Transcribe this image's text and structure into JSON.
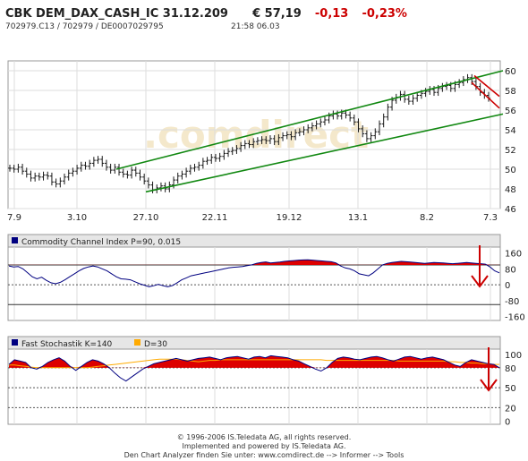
{
  "header": {
    "symbol": "CBK DEM_DAX_CASH_IC 31.12.209",
    "price": "€ 57,19",
    "change": "-0,13",
    "change_pct": "-0,23%",
    "ids": "702979.C13  /  702979  /  DE0007029795",
    "time": "21:58  06.03"
  },
  "watermark": ".comdirect",
  "colors": {
    "channel": "#118811",
    "down": "#cc0000",
    "indicator": "#000080",
    "fill": "#dd0000",
    "signal": "#ffaa00"
  },
  "footer": {
    "line1": "© 1996-2006 IS.Teledata AG, all rights reserved.",
    "line2": "Implemented and powered by IS.Teledata AG.",
    "line3": "Den Chart Analyzer finden Sie unter: www.comdirect.de --> Informer --> Tools"
  },
  "chart_data": [
    {
      "type": "ohlc",
      "x_ticks": [
        "7.9",
        "3.10",
        "27.10",
        "22.11",
        "19.12",
        "13.1",
        "8.2",
        "7.3"
      ],
      "y_ticks": [
        46,
        48,
        50,
        52,
        54,
        56,
        58,
        60
      ],
      "ylim": [
        46,
        61
      ],
      "close": [
        50.1,
        50.0,
        50.2,
        49.8,
        49.5,
        49.1,
        49.3,
        49.2,
        49.4,
        49.3,
        48.7,
        48.5,
        48.8,
        49.2,
        49.6,
        49.8,
        50.1,
        50.4,
        50.3,
        50.6,
        50.9,
        51.0,
        50.6,
        50.2,
        49.9,
        50.2,
        49.7,
        49.5,
        49.4,
        49.9,
        49.6,
        49.2,
        48.8,
        48.4,
        47.9,
        48.1,
        48.3,
        48.0,
        48.4,
        48.9,
        49.3,
        49.5,
        49.8,
        50.1,
        50.2,
        50.4,
        50.8,
        50.9,
        51.2,
        51.1,
        51.3,
        51.6,
        51.8,
        51.9,
        52.1,
        52.4,
        52.6,
        52.5,
        52.8,
        52.9,
        53.0,
        52.9,
        53.1,
        52.8,
        53.2,
        53.4,
        53.5,
        53.3,
        53.7,
        53.8,
        54.0,
        54.2,
        54.4,
        54.6,
        54.8,
        55.0,
        55.4,
        55.6,
        55.4,
        55.7,
        55.5,
        55.2,
        54.8,
        54.1,
        53.6,
        53.1,
        53.4,
        53.8,
        54.6,
        55.3,
        56.3,
        57.0,
        57.3,
        57.6,
        57.1,
        56.9,
        57.2,
        57.5,
        57.7,
        57.9,
        58.1,
        57.8,
        58.2,
        58.4,
        58.5,
        58.2,
        58.6,
        58.8,
        59.1,
        59.3,
        58.9,
        58.4,
        57.8,
        57.5,
        57.2
      ],
      "trend_lines": [
        {
          "name": "upper",
          "from": [
            "27.10",
            50.0
          ],
          "to": [
            "7.3",
            60.0
          ]
        },
        {
          "name": "lower",
          "from": [
            "27.10",
            47.7
          ],
          "to": [
            "7.3",
            55.6
          ]
        },
        {
          "name": "down-channel-top",
          "from": [
            "7.3",
            59.5
          ],
          "to": [
            "7.3",
            57.4
          ]
        },
        {
          "name": "down-channel-bottom",
          "from": [
            "7.3",
            58.8
          ],
          "to": [
            "7.3",
            56.2
          ]
        }
      ]
    },
    {
      "type": "line",
      "legend": "Commodity Channel Index P=90, 0.015",
      "y_ticks": [
        -160,
        -80,
        0,
        80,
        160
      ],
      "ylim": [
        -180,
        190
      ],
      "reference_lines": [
        100,
        -100
      ],
      "values": [
        95,
        90,
        92,
        80,
        60,
        40,
        30,
        38,
        22,
        10,
        5,
        12,
        25,
        40,
        55,
        70,
        82,
        90,
        95,
        90,
        80,
        70,
        55,
        40,
        30,
        28,
        25,
        15,
        5,
        -2,
        -10,
        -5,
        2,
        -5,
        -10,
        -4,
        10,
        25,
        35,
        45,
        50,
        55,
        60,
        65,
        70,
        75,
        80,
        85,
        88,
        90,
        92,
        96,
        100,
        108,
        112,
        115,
        110,
        112,
        114,
        118,
        120,
        122,
        124,
        125,
        126,
        124,
        122,
        120,
        118,
        116,
        110,
        95,
        85,
        80,
        70,
        55,
        50,
        45,
        60,
        80,
        100,
        108,
        112,
        115,
        118,
        116,
        114,
        112,
        110,
        108,
        110,
        112,
        111,
        110,
        108,
        106,
        108,
        110,
        112,
        110,
        108,
        106,
        104,
        90,
        70,
        60
      ]
    },
    {
      "type": "line",
      "legend": "Fast Stochastik K=140",
      "legend2": "D=30",
      "y_ticks": [
        0,
        20,
        50,
        80,
        100
      ],
      "ylim": [
        -5,
        108
      ],
      "reference_lines": [
        80,
        50,
        20
      ],
      "k": [
        85,
        92,
        90,
        88,
        80,
        78,
        82,
        88,
        92,
        95,
        90,
        82,
        76,
        82,
        88,
        92,
        90,
        86,
        80,
        72,
        65,
        60,
        66,
        72,
        78,
        82,
        86,
        88,
        90,
        92,
        94,
        92,
        90,
        92,
        94,
        95,
        96,
        94,
        92,
        95,
        96,
        97,
        95,
        93,
        96,
        97,
        95,
        98,
        97,
        96,
        95,
        92,
        90,
        86,
        82,
        78,
        75,
        80,
        88,
        94,
        96,
        95,
        93,
        92,
        94,
        96,
        97,
        95,
        92,
        90,
        93,
        96,
        97,
        95,
        93,
        95,
        96,
        94,
        92,
        88,
        84,
        82,
        88,
        92,
        90,
        88,
        86,
        85,
        80
      ],
      "d": [
        84,
        84,
        83,
        82,
        81,
        80,
        80,
        80,
        80,
        80,
        80,
        80,
        80,
        80,
        80,
        81,
        82,
        83,
        84,
        85,
        86,
        87,
        88,
        89,
        90,
        91,
        92,
        93,
        93,
        93,
        93,
        92,
        91,
        90,
        89,
        90,
        91,
        91,
        92,
        92,
        92,
        92,
        92,
        92,
        92,
        92,
        92,
        92,
        92,
        92,
        92,
        92,
        92,
        92,
        92,
        92,
        92,
        91,
        91,
        91,
        91,
        91,
        91,
        91,
        91,
        91,
        91,
        91,
        91,
        91,
        90,
        90,
        90,
        90,
        90,
        90,
        90,
        90,
        90,
        89,
        89,
        88,
        88,
        87,
        87,
        86,
        86,
        85,
        85
      ]
    }
  ]
}
